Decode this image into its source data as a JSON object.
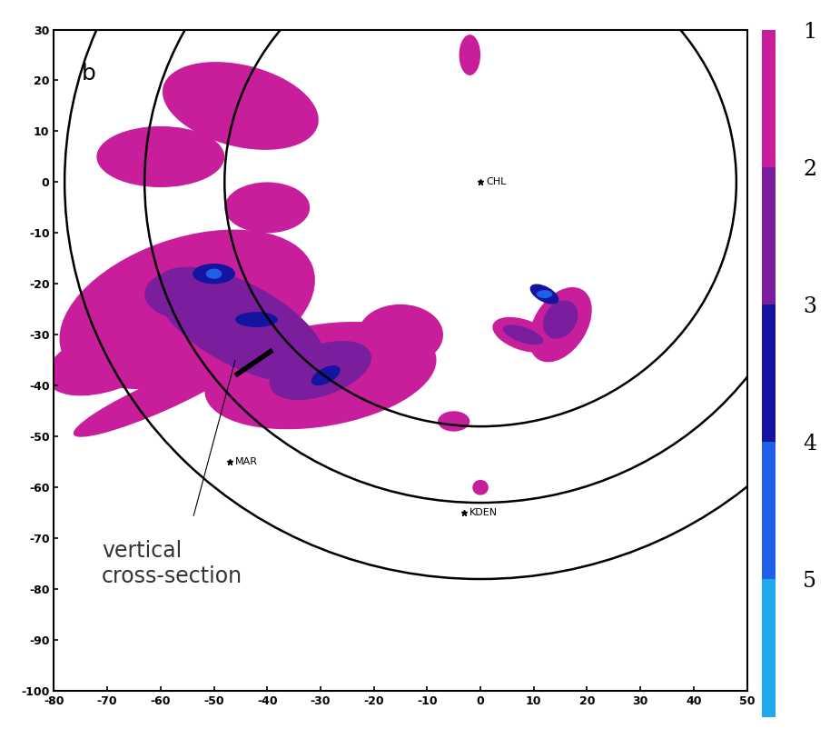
{
  "chart_data": {
    "type": "radar_map",
    "panel_label": "b",
    "xlim": [
      -80,
      50
    ],
    "ylim": [
      -100,
      30
    ],
    "xticks": [
      -80,
      -70,
      -60,
      -50,
      -40,
      -30,
      -20,
      -10,
      0,
      10,
      20,
      30,
      40,
      50
    ],
    "yticks": [
      -100,
      -90,
      -80,
      -70,
      -60,
      -50,
      -40,
      -30,
      -20,
      -10,
      0,
      10,
      20,
      30
    ],
    "stations": [
      {
        "name": "CHL",
        "x": 0,
        "y": 0
      },
      {
        "name": "MAR",
        "x": -47,
        "y": -55
      },
      {
        "name": "KDEN",
        "x": -3,
        "y": -65
      }
    ],
    "range_rings": {
      "center": "CHL",
      "radii": [
        48,
        63,
        78
      ]
    },
    "cross_section": {
      "x": [
        -46,
        -39
      ],
      "y": [
        -38,
        -33
      ]
    },
    "annotation": {
      "text": "vertical\ncross-section",
      "x": -71,
      "y": -75,
      "target_x": -46,
      "target_y": -35
    },
    "echoes": [
      {
        "x": -55,
        "y": -25,
        "rx": 25,
        "ry": 14,
        "angle": 20,
        "level": 1
      },
      {
        "x": -30,
        "y": -38,
        "rx": 22,
        "ry": 10,
        "angle": 10,
        "level": 1
      },
      {
        "x": -70,
        "y": -35,
        "rx": 12,
        "ry": 6,
        "angle": 20,
        "level": 1
      },
      {
        "x": -60,
        "y": -42,
        "rx": 18,
        "ry": 3,
        "angle": 25,
        "level": 1
      },
      {
        "x": -45,
        "y": 15,
        "rx": 15,
        "ry": 8,
        "angle": -15,
        "level": 1
      },
      {
        "x": -60,
        "y": 5,
        "rx": 12,
        "ry": 6,
        "angle": 0,
        "level": 1
      },
      {
        "x": -15,
        "y": -30,
        "rx": 8,
        "ry": 6,
        "angle": 0,
        "level": 1
      },
      {
        "x": -40,
        "y": -5,
        "rx": 8,
        "ry": 5,
        "angle": 0,
        "level": 1
      },
      {
        "x": -2,
        "y": 25,
        "rx": 2,
        "ry": 4,
        "angle": 0,
        "level": 1
      },
      {
        "x": 15,
        "y": -28,
        "rx": 8,
        "ry": 5,
        "angle": 60,
        "level": 1
      },
      {
        "x": 8,
        "y": -30,
        "rx": 3,
        "ry": 6,
        "angle": 70,
        "level": 1
      },
      {
        "x": -5,
        "y": -47,
        "rx": 3,
        "ry": 2,
        "angle": 0,
        "level": 1
      },
      {
        "x": 0,
        "y": -60,
        "rx": 1.5,
        "ry": 1.5,
        "angle": 0,
        "level": 1
      },
      {
        "x": -45,
        "y": -28,
        "rx": 18,
        "ry": 8,
        "angle": -30,
        "level": 2
      },
      {
        "x": -30,
        "y": -37,
        "rx": 10,
        "ry": 5,
        "angle": 20,
        "level": 2
      },
      {
        "x": -55,
        "y": -22,
        "rx": 8,
        "ry": 5,
        "angle": 0,
        "level": 2
      },
      {
        "x": 15,
        "y": -27,
        "rx": 4,
        "ry": 3,
        "angle": 60,
        "level": 2
      },
      {
        "x": 8,
        "y": -30,
        "rx": 1.5,
        "ry": 4,
        "angle": 70,
        "level": 2
      },
      {
        "x": -50,
        "y": -18,
        "rx": 4,
        "ry": 2,
        "angle": 0,
        "level": 3
      },
      {
        "x": -42,
        "y": -27,
        "rx": 4,
        "ry": 1.5,
        "angle": 0,
        "level": 3
      },
      {
        "x": -29,
        "y": -38,
        "rx": 3,
        "ry": 1.5,
        "angle": 30,
        "level": 3
      },
      {
        "x": 12,
        "y": -22,
        "rx": 3,
        "ry": 1.5,
        "angle": -30,
        "level": 3
      },
      {
        "x": -50,
        "y": -18,
        "rx": 1.5,
        "ry": 1,
        "angle": 0,
        "level": 4
      },
      {
        "x": 12,
        "y": -22,
        "rx": 1.5,
        "ry": 0.8,
        "angle": 0,
        "level": 4
      }
    ],
    "colorbar": {
      "range": [
        1,
        6
      ],
      "ticks": [
        1,
        2,
        3,
        4,
        5
      ],
      "colors": [
        "#c81e9b",
        "#7a1e9e",
        "#1414a0",
        "#2060e8",
        "#20a8f0"
      ]
    }
  }
}
